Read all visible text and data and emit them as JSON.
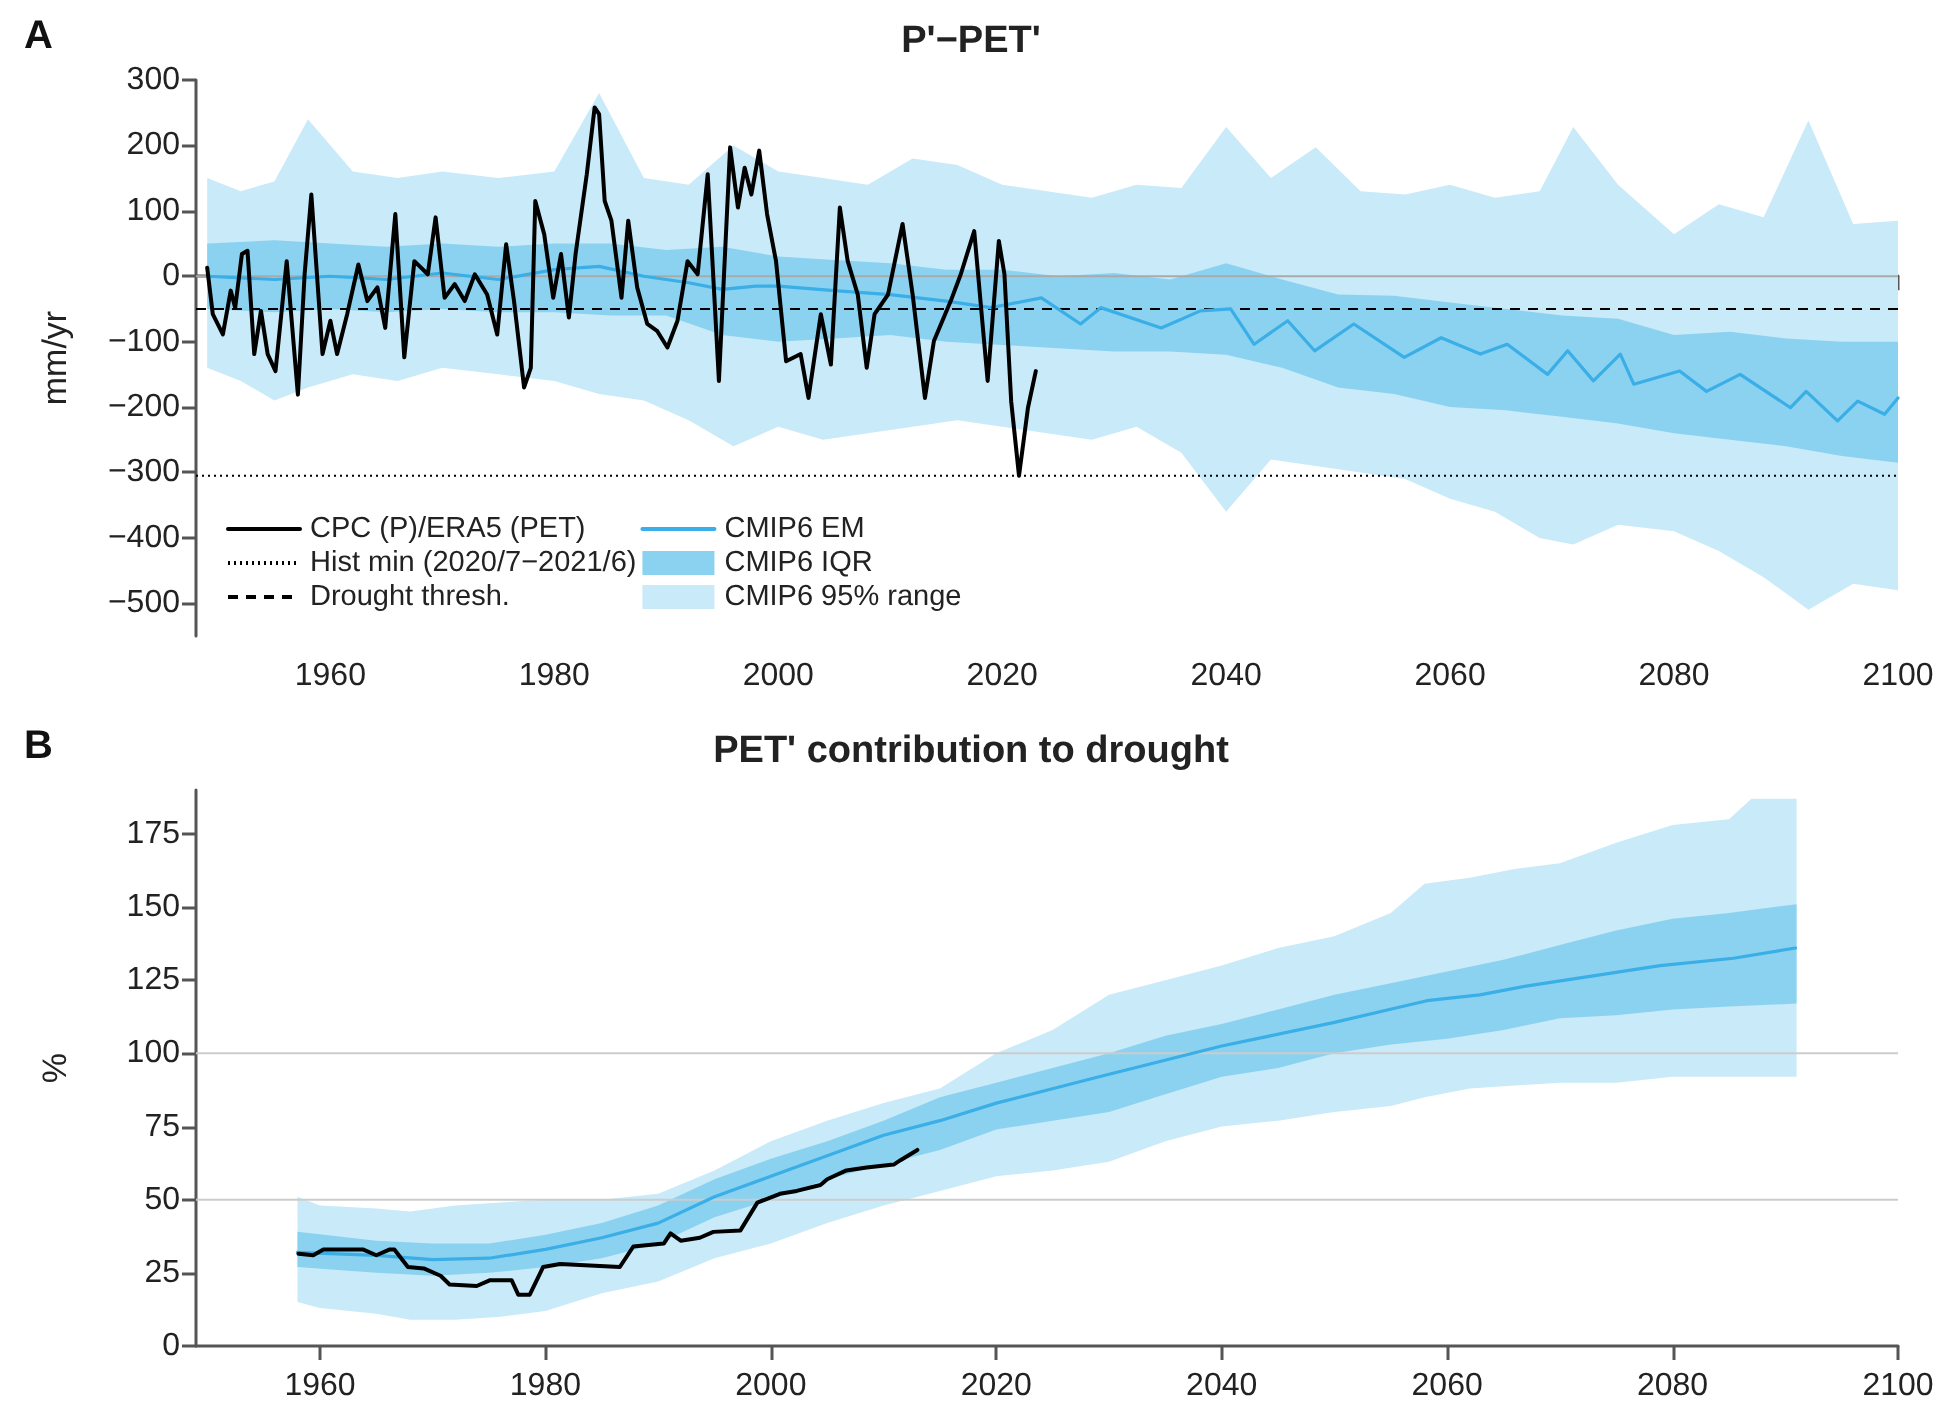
{
  "chart_data": [
    {
      "type": "line",
      "title": "P'−PET'",
      "ylabel": "mm/yr",
      "annotations": [
        "A"
      ],
      "xlim": [
        1948,
        2100
      ],
      "xticks": [
        1960,
        1980,
        2000,
        2020,
        2040,
        2060,
        2080,
        2100
      ],
      "ylim": [
        -550,
        300
      ],
      "yticks": [
        -500,
        -400,
        -300,
        -200,
        -100,
        0,
        100,
        200,
        300
      ],
      "grid": false,
      "legend": "bottom left",
      "ref_lines": [
        {
          "axis": "y",
          "value": 0,
          "color": "#aaaaaa",
          "line_style": "solid"
        },
        {
          "axis": "y",
          "value": -305,
          "label": "Hist min (2020/7−2021/6)",
          "color": "#000000",
          "line_style": "dotted"
        },
        {
          "axis": "y",
          "value": -50,
          "label": "Drought thresh.",
          "color": "#000000",
          "line_style": "dashed"
        }
      ],
      "series": [
        {
          "name": "CPC (P)/ERA5 (PET)",
          "color": "#000000",
          "x": [
            1949.0,
            1949.5,
            1950.4,
            1951.1,
            1951.5,
            1952.1,
            1952.6,
            1953.2,
            1953.8,
            1954.4,
            1955.1,
            1956.1,
            1957.1,
            1957.7,
            1958.3,
            1959.3,
            1960.0,
            1960.6,
            1961.5,
            1962.5,
            1963.3,
            1964.2,
            1964.9,
            1965.8,
            1966.6,
            1967.5,
            1968.7,
            1969.4,
            1970.2,
            1971.1,
            1972.0,
            1972.9,
            1974.0,
            1974.9,
            1975.7,
            1976.4,
            1977.3,
            1977.9,
            1978.3,
            1979.1,
            1979.9,
            1980.6,
            1981.3,
            1981.9,
            1982.9,
            1983.6,
            1984.0,
            1984.5,
            1985.1,
            1986.0,
            1986.6,
            1987.4,
            1988.3,
            1989.2,
            1990.1,
            1991.0,
            1991.9,
            1992.8,
            1993.7,
            1994.7,
            1995.7,
            1996.4,
            1997.0,
            1997.6,
            1998.3,
            1999.0,
            1999.8,
            2000.7,
            2002.0,
            2002.7,
            2003.8,
            2004.7,
            2005.5,
            2006.2,
            2007.1,
            2007.9,
            2008.6,
            2009.8,
            2011.1,
            2012.0,
            2013.1,
            2013.9,
            2015.4,
            2016.3,
            2017.5,
            2018.7,
            2019.7,
            2020.2,
            2020.8,
            2021.5,
            2022.3,
            2023.0
          ],
          "values": [
            13,
            -58,
            -89,
            -22,
            -48,
            34,
            39,
            -119,
            -53,
            -119,
            -145,
            23,
            -181,
            3,
            125,
            -119,
            -68,
            -119,
            -58,
            18,
            -38,
            -17,
            -79,
            95,
            -124,
            23,
            3,
            90,
            -33,
            -12,
            -38,
            3,
            -28,
            -89,
            49,
            -38,
            -170,
            -140,
            115,
            64,
            -33,
            34,
            -63,
            34,
            156,
            258,
            248,
            115,
            85,
            -33,
            85,
            -17,
            -73,
            -84,
            -109,
            -68,
            23,
            3,
            156,
            -160,
            197,
            105,
            166,
            125,
            192,
            95,
            23,
            -130,
            -119,
            -186,
            -58,
            -135,
            105,
            23,
            -28,
            -140,
            -58,
            -28,
            80,
            -28,
            -186,
            -99,
            -38,
            3,
            69,
            -160,
            54,
            3,
            -191,
            -305,
            -201,
            -145
          ]
        },
        {
          "name": "CMIP6 EM",
          "color": "#3aaee6",
          "x": [
            1949,
            1955,
            1960,
            1965,
            1970,
            1975,
            1980,
            1984,
            1988,
            1992,
            1995,
            1998,
            2000,
            2005,
            2010,
            2015,
            2019,
            2023.5,
            2027,
            2028.8,
            2034.2,
            2037.7,
            2040.4,
            2042.5,
            2045.5,
            2047.9,
            2051.4,
            2055.9,
            2059.2,
            2062.7,
            2065.1,
            2068.7,
            2070.5,
            2072.8,
            2075.2,
            2076.4,
            2080.5,
            2082.9,
            2085.9,
            2090.4,
            2091.8,
            2094.6,
            2096.4,
            2098.8,
            2100
          ],
          "values": [
            0,
            -5,
            0,
            -5,
            5,
            -5,
            10,
            15,
            0,
            -10,
            -20,
            -15,
            -15,
            -22,
            -28,
            -38,
            -48,
            -33,
            -73,
            -48,
            -79,
            -53,
            -50,
            -104,
            -68,
            -114,
            -73,
            -124,
            -94,
            -119,
            -104,
            -150,
            -114,
            -160,
            -119,
            -165,
            -145,
            -176,
            -150,
            -201,
            -176,
            -221,
            -191,
            -211,
            -186
          ]
        },
        {
          "name": "CMIP6 IQR",
          "color": "#8bd2f0",
          "x": [
            1949,
            1955,
            1960,
            1965,
            1970,
            1975,
            1980,
            1985,
            1990,
            1995,
            2000,
            2005,
            2010,
            2015,
            2020,
            2025,
            2030,
            2035,
            2040,
            2045,
            2050,
            2055,
            2060,
            2065,
            2070,
            2075,
            2080,
            2085,
            2090,
            2095,
            2100
          ],
          "values": [
            null,
            null,
            null,
            null,
            null,
            null,
            null,
            null,
            null,
            null,
            null,
            null,
            null,
            null,
            null,
            null,
            null,
            null,
            null,
            null,
            null,
            null,
            null,
            null,
            null,
            null,
            null,
            null,
            null,
            null,
            null
          ],
          "lower": [
            -50,
            -55,
            -50,
            -55,
            -50,
            -55,
            -55,
            -60,
            -60,
            -90,
            -100,
            -95,
            -90,
            -100,
            -105,
            -110,
            -115,
            -115,
            -120,
            -140,
            -170,
            -180,
            -200,
            -205,
            -215,
            -225,
            -240,
            -250,
            -260,
            -275,
            -285
          ],
          "upper": [
            50,
            55,
            50,
            45,
            50,
            45,
            50,
            50,
            40,
            45,
            30,
            25,
            20,
            10,
            10,
            0,
            5,
            -5,
            20,
            -5,
            -28,
            -30,
            -40,
            -50,
            -60,
            -65,
            -90,
            -85,
            -95,
            -100,
            -100
          ]
        },
        {
          "name": "CMIP6 95% range",
          "color": "#c9eaf8",
          "x": [
            1949,
            1952,
            1955,
            1958,
            1962,
            1966,
            1970,
            1975,
            1980,
            1984,
            1988,
            1992,
            1996,
            2000,
            2004,
            2008,
            2012,
            2016,
            2020,
            2024,
            2028,
            2032,
            2036,
            2040,
            2044,
            2048,
            2052,
            2056,
            2060,
            2064,
            2068,
            2071,
            2075,
            2080,
            2084,
            2088,
            2092,
            2096,
            2100
          ],
          "values": [
            null,
            null,
            null,
            null,
            null,
            null,
            null,
            null,
            null,
            null,
            null,
            null,
            null,
            null,
            null,
            null,
            null,
            null,
            null,
            null,
            null,
            null,
            null,
            null,
            null,
            null,
            null,
            null,
            null,
            null,
            null,
            null,
            null,
            null,
            null,
            null,
            null,
            null,
            null
          ],
          "lower": [
            -140,
            -160,
            -190,
            -170,
            -150,
            -160,
            -140,
            -150,
            -160,
            -180,
            -190,
            -220,
            -260,
            -230,
            -250,
            -240,
            -230,
            -220,
            -230,
            -240,
            -250,
            -230,
            -270,
            -360,
            -280,
            -290,
            -300,
            -310,
            -340,
            -360,
            -400,
            -410,
            -380,
            -390,
            -420,
            -460,
            -510,
            -470,
            -480
          ],
          "upper": [
            150,
            130,
            145,
            240,
            160,
            150,
            160,
            150,
            160,
            280,
            150,
            140,
            200,
            160,
            150,
            140,
            180,
            170,
            140,
            130,
            120,
            140,
            135,
            228,
            150,
            197,
            130,
            125,
            140,
            120,
            130,
            228,
            140,
            64,
            110,
            90,
            238,
            80,
            85
          ]
        }
      ]
    },
    {
      "type": "line",
      "title": "PET' contribution to drought",
      "ylabel": "%",
      "annotations": [
        "B"
      ],
      "xlim": [
        1949,
        2100
      ],
      "xticks": [
        1960,
        1980,
        2000,
        2020,
        2040,
        2060,
        2080,
        2100
      ],
      "ylim": [
        0,
        190
      ],
      "yticks": [
        0,
        25,
        50,
        75,
        100,
        125,
        150,
        175
      ],
      "grid": false,
      "legend": false,
      "ref_lines": [
        {
          "axis": "y",
          "value": 50,
          "color": "#cccccc",
          "line_style": "solid"
        },
        {
          "axis": "y",
          "value": 100,
          "color": "#cccccc",
          "line_style": "solid"
        }
      ],
      "series": [
        {
          "color": "#000000",
          "x": [
            1958.1,
            1959.4,
            1960.3,
            1963.8,
            1965.0,
            1966.2,
            1966.6,
            1967.8,
            1969.2,
            1970.7,
            1971.5,
            1973.9,
            1975.1,
            1977.0,
            1977.6,
            1978.6,
            1979.8,
            1981.3,
            1986.6,
            1987.8,
            1990.5,
            1991.1,
            1992.0,
            1993.7,
            1994.9,
            1997.3,
            1998.8,
            2000.8,
            2002.3,
            2004.4,
            2005.0,
            2006.7,
            2008.5,
            2010.9,
            2011.5,
            2013.0
          ],
          "values": [
            31.5,
            31,
            33,
            33,
            31,
            33,
            33,
            27,
            26.5,
            24,
            21,
            20.5,
            22.5,
            22.5,
            17.5,
            17.5,
            27,
            28,
            27,
            34,
            35,
            38.5,
            36,
            37,
            39,
            39.5,
            49,
            52,
            53,
            55,
            57,
            60,
            61,
            62,
            63.5,
            67
          ]
        },
        {
          "color": "#3aaee6",
          "x": [
            1958,
            1965,
            1970,
            1975,
            1980,
            1985,
            1990,
            1995,
            2000,
            2005,
            2010,
            2015,
            2020,
            2028.6,
            2040,
            2049.9,
            2058.2,
            2062.9,
            2067,
            2078.9,
            2085.4,
            2090.9
          ],
          "values": [
            32,
            31,
            29.5,
            30,
            33,
            37,
            42,
            51,
            58,
            65,
            72,
            77,
            83,
            91.5,
            102.5,
            110.5,
            118,
            120,
            123,
            130,
            132.5,
            136
          ]
        },
        {
          "color": "#8bd2f0",
          "x": [
            1958,
            1965,
            1970,
            1975,
            1980,
            1985,
            1990,
            1995,
            2000,
            2005,
            2010,
            2015,
            2020,
            2025,
            2030,
            2035,
            2040,
            2045,
            2050,
            2055,
            2060,
            2065,
            2070,
            2075,
            2080,
            2085,
            2091
          ],
          "values": [
            null,
            null,
            null,
            null,
            null,
            null,
            null,
            null,
            null,
            null,
            null,
            null,
            null,
            null,
            null,
            null,
            null,
            null,
            null,
            null,
            null,
            null,
            null,
            null,
            null,
            null,
            null
          ],
          "lower": [
            27,
            25,
            24,
            25,
            27,
            30,
            35,
            44,
            50,
            57,
            62,
            67,
            74,
            77,
            80,
            86,
            92,
            95,
            100,
            103,
            105,
            108,
            112,
            113,
            115,
            116,
            117
          ],
          "upper": [
            39,
            36,
            35,
            35,
            38,
            42,
            48,
            57,
            64,
            70,
            77,
            85,
            90,
            95,
            100,
            106,
            110,
            115,
            120,
            124,
            128,
            132,
            137,
            142,
            146,
            148,
            151
          ]
        },
        {
          "color": "#c9eaf8",
          "x": [
            1958,
            1960,
            1965,
            1968,
            1972,
            1976,
            1980,
            1985,
            1990,
            1995,
            2000,
            2005,
            2010,
            2015,
            2020,
            2025,
            2030,
            2035,
            2040,
            2045,
            2050,
            2055,
            2058,
            2062,
            2066,
            2070,
            2075,
            2080,
            2085,
            2087,
            2091
          ],
          "values": [
            null,
            null,
            null,
            null,
            null,
            null,
            null,
            null,
            null,
            null,
            null,
            null,
            null,
            null,
            null,
            null,
            null,
            null,
            null,
            null,
            null,
            null,
            null,
            null,
            null,
            null,
            null,
            null,
            null,
            null,
            null
          ],
          "lower": [
            15,
            13,
            11,
            9,
            9,
            10,
            12,
            18,
            22,
            30,
            35,
            42,
            48,
            53,
            58,
            60,
            63,
            70,
            75,
            77,
            80,
            82,
            85,
            88,
            89,
            90,
            90,
            92,
            92,
            92,
            92
          ],
          "upper": [
            51,
            48,
            47,
            46,
            48,
            49,
            50,
            50,
            52,
            60,
            70,
            77,
            83,
            88,
            100,
            108,
            120,
            125,
            130,
            136,
            140,
            148,
            158,
            160,
            163,
            165,
            172,
            178,
            180,
            187,
            187
          ]
        }
      ]
    }
  ]
}
